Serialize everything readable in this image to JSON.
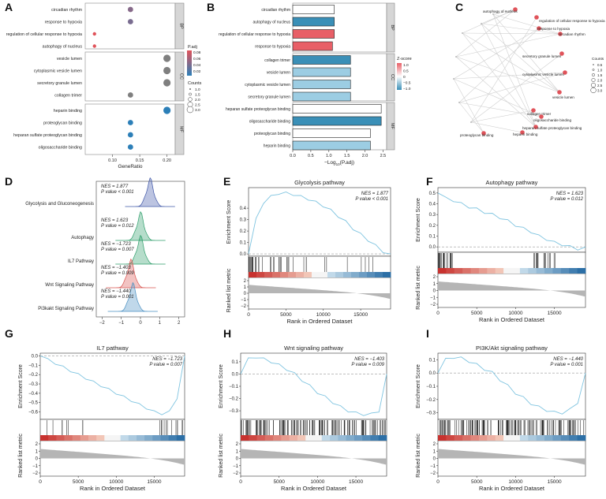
{
  "figure": {
    "panelA": {
      "letter": "A",
      "groups": [
        {
          "name": "BP",
          "terms": [
            {
              "label": "circadian rhythm",
              "gene_ratio": 0.133,
              "padj": 0.045,
              "count": 2
            },
            {
              "label": "response to hypoxia",
              "gene_ratio": 0.133,
              "padj": 0.04,
              "count": 2
            },
            {
              "label": "regulation of cellular response to hypoxia",
              "gene_ratio": 0.067,
              "padj": 0.08,
              "count": 1
            },
            {
              "label": "autophagy of nucleus",
              "gene_ratio": 0.067,
              "padj": 0.08,
              "count": 1
            }
          ]
        },
        {
          "name": "CC",
          "terms": [
            {
              "label": "vesicle lumen",
              "gene_ratio": 0.2,
              "padj": null,
              "count": 3
            },
            {
              "label": "cytoplasmic vesicle lumen",
              "gene_ratio": 0.2,
              "padj": null,
              "count": 3
            },
            {
              "label": "secretory granule lumen",
              "gene_ratio": 0.2,
              "padj": null,
              "count": 3
            },
            {
              "label": "collagen trimer",
              "gene_ratio": 0.133,
              "padj": null,
              "count": 2
            }
          ]
        },
        {
          "name": "MF",
          "terms": [
            {
              "label": "heparin binding",
              "gene_ratio": 0.2,
              "padj": 0.01,
              "count": 3
            },
            {
              "label": "proteoglycan binding",
              "gene_ratio": 0.133,
              "padj": 0.01,
              "count": 2
            },
            {
              "label": "heparan sulfate proteoglycan binding",
              "gene_ratio": 0.133,
              "padj": 0.01,
              "count": 2
            },
            {
              "label": "oligosaccharide binding",
              "gene_ratio": 0.133,
              "padj": 0.01,
              "count": 2
            }
          ]
        }
      ],
      "xticks": [
        "0.10",
        "0.15",
        "0.20"
      ],
      "xlim": [
        0.05,
        0.215
      ],
      "xlabel": "GeneRatio",
      "legend_padj_title": "P.adj",
      "legend_padj_ticks": [
        "0.08",
        "0.06",
        "0.04",
        "0.02"
      ],
      "legend_count_title": "Counts",
      "legend_count_ticks": [
        "1.0",
        "1.5",
        "2.0",
        "2.5",
        "3.0"
      ]
    },
    "panelB": {
      "letter": "B",
      "groups": [
        {
          "name": "BP",
          "terms": [
            {
              "label": "circadian rhythm",
              "value": 1.15,
              "zscore": 0.0
            },
            {
              "label": "autophagy of nucleus",
              "value": 1.15,
              "zscore": -1.0
            },
            {
              "label": "regulation of cellular response to hypoxia",
              "value": 1.15,
              "zscore": 1.0
            },
            {
              "label": "response to hypoxia",
              "value": 1.1,
              "zscore": 1.0
            }
          ]
        },
        {
          "name": "CC",
          "terms": [
            {
              "label": "collagen trimer",
              "value": 1.6,
              "zscore": -1.0
            },
            {
              "label": "vesicle lumen",
              "value": 1.6,
              "zscore": -0.6
            },
            {
              "label": "cytoplasmic vesicle lumen",
              "value": 1.6,
              "zscore": -0.6
            },
            {
              "label": "secretory granule lumen",
              "value": 1.6,
              "zscore": -0.6
            }
          ]
        },
        {
          "name": "MF",
          "terms": [
            {
              "label": "heparan sulfate proteoglycan binding",
              "value": 2.45,
              "zscore": 0.0
            },
            {
              "label": "oligosaccharide binding",
              "value": 2.45,
              "zscore": -1.0
            },
            {
              "label": "proteoglycan binding",
              "value": 2.15,
              "zscore": 0.0
            },
            {
              "label": "heparin binding",
              "value": 2.15,
              "zscore": -0.6
            }
          ]
        }
      ],
      "xticks": [
        "0.0",
        "0.5",
        "1.0",
        "1.5",
        "2.0",
        "2.5"
      ],
      "xlim": [
        0,
        2.6
      ],
      "xlabel": "−Log",
      "xlabel_sub": "10",
      "xlabel_tail": "(P.adj)",
      "legend_title": "Z-score",
      "legend_ticks": [
        "1.0",
        "0.5",
        "0",
        "−0.5",
        "−1.0"
      ]
    },
    "panelC": {
      "letter": "C",
      "terms": [
        "autophagy of nucleus",
        "regulation of cellular response to hypoxia",
        "response to hypoxia",
        "circadian rhythm",
        "secretory granule lumen",
        "cytoplasmic vesicle lumen",
        "vesicle lumen",
        "collagen trimer",
        "oligosaccharide binding",
        "heparan sulfate proteoglycan binding",
        "heparin binding",
        "proteoglycan binding"
      ],
      "legend_title": "Counts",
      "legend_ticks": [
        "0.5",
        "1.0",
        "1.5",
        "2.0",
        "2.5",
        "3.0"
      ]
    },
    "panelD": {
      "letter": "D",
      "pathways": [
        {
          "label": "Glycolysis and Gluconeogenesis",
          "nes": "NES = 1.877",
          "pval": "P value < 0.001",
          "center": 0.5,
          "color": "#3f57a8"
        },
        {
          "label": "Autophagy",
          "nes": "NES = 1.623",
          "pval": "P value = 0.012",
          "center": 0.0,
          "color": "#2e9e6b"
        },
        {
          "label": "IL7 Pathway",
          "nes": "NES = −1.723",
          "pval": "P value = 0.007",
          "center": 0.0,
          "color": "#2e9e6b"
        },
        {
          "label": "Wnt Signaling Pathway",
          "nes": "NES = −1.403",
          "pval": "P value = 0.009",
          "center": -0.5,
          "color": "#d9534f"
        },
        {
          "label": "Pi3kakt Signaling Pathway",
          "nes": "NES = −1.440",
          "pval": "P value = 0.001",
          "center": -0.4,
          "color": "#4a90c2"
        }
      ],
      "xticks": [
        "−2",
        "−1",
        "0",
        "1",
        "2"
      ],
      "xlim": [
        -2.3,
        2.3
      ]
    },
    "axis_texts": {
      "enrichment": "Enrichment Score",
      "ranked": "Ranked list metric",
      "rank_label": "Rank in Ordered Dataset",
      "rank_ticks": [
        "0",
        "5000",
        "10000",
        "15000"
      ]
    }
  },
  "chart_data": [
    {
      "type": "line",
      "panel": "E",
      "title": "Glycolysis pathway",
      "nes": "NES = 1.877",
      "pval": "P value < 0.001",
      "x": [
        0,
        1000,
        2000,
        3000,
        4000,
        5000,
        6000,
        7000,
        8000,
        9000,
        10000,
        11000,
        12000,
        13000,
        14000,
        15000,
        16000,
        17000,
        18000,
        19000
      ],
      "y": [
        0,
        0.3,
        0.45,
        0.5,
        0.53,
        0.53,
        0.52,
        0.5,
        0.48,
        0.45,
        0.42,
        0.38,
        0.33,
        0.28,
        0.22,
        0.17,
        0.12,
        0.07,
        0.02,
        0.0
      ],
      "yticks": [
        "0.0",
        "0.1",
        "0.2",
        "0.3",
        "0.4"
      ],
      "ylim": [
        -0.02,
        0.58
      ],
      "xlim": [
        0,
        19000
      ],
      "metric_ticks": [
        "2",
        "1",
        "0",
        "−1",
        "−2"
      ]
    },
    {
      "type": "line",
      "panel": "F",
      "title": "Autophagy pathway",
      "nes": "NES = 1.623",
      "pval": "P value = 0.012",
      "x": [
        0,
        1000,
        2000,
        3000,
        4000,
        5000,
        6000,
        7000,
        8000,
        9000,
        10000,
        11000,
        12000,
        13000,
        14000,
        15000,
        16000,
        17000,
        18000,
        19000
      ],
      "y": [
        0.5,
        0.45,
        0.43,
        0.4,
        0.37,
        0.35,
        0.32,
        0.3,
        0.27,
        0.24,
        0.2,
        0.17,
        0.14,
        0.1,
        0.07,
        0.04,
        0.02,
        0.0,
        -0.02,
        0.0
      ],
      "yticks": [
        "0.0",
        "0.1",
        "0.2",
        "0.3",
        "0.4",
        "0.5"
      ],
      "ylim": [
        -0.05,
        0.55
      ],
      "xlim": [
        0,
        19000
      ],
      "metric_ticks": [
        "2",
        "1",
        "0",
        "−1",
        "−2"
      ]
    },
    {
      "type": "line",
      "panel": "G",
      "title": "IL7 pathway",
      "nes": "NES = −1.723",
      "pval": "P value = 0.007",
      "x": [
        0,
        1000,
        2000,
        3000,
        4000,
        5000,
        6000,
        7000,
        8000,
        9000,
        10000,
        11000,
        12000,
        13000,
        14000,
        15000,
        16000,
        17000,
        18000,
        19000
      ],
      "y": [
        0,
        -0.04,
        -0.08,
        -0.12,
        -0.16,
        -0.2,
        -0.24,
        -0.28,
        -0.32,
        -0.36,
        -0.4,
        -0.44,
        -0.48,
        -0.52,
        -0.56,
        -0.6,
        -0.62,
        -0.6,
        -0.45,
        0.0
      ],
      "yticks": [
        "0.0",
        "−0.1",
        "−0.2",
        "−0.3",
        "−0.4",
        "−0.5",
        "−0.6"
      ],
      "ylim": [
        -0.68,
        0.03
      ],
      "xlim": [
        0,
        19000
      ],
      "metric_ticks": [
        "2",
        "1",
        "0",
        "−1",
        "−2"
      ]
    },
    {
      "type": "line",
      "panel": "H",
      "title": "Wnt signaling pathway",
      "nes": "NES = −1.403",
      "pval": "P value = 0.009",
      "x": [
        0,
        1000,
        2000,
        3000,
        4000,
        5000,
        6000,
        7000,
        8000,
        9000,
        10000,
        11000,
        12000,
        13000,
        14000,
        15000,
        16000,
        17000,
        18000,
        19000
      ],
      "y": [
        0,
        0.12,
        0.14,
        0.12,
        0.1,
        0.07,
        0.04,
        0.0,
        -0.05,
        -0.1,
        -0.15,
        -0.19,
        -0.23,
        -0.27,
        -0.3,
        -0.32,
        -0.33,
        -0.33,
        -0.3,
        0.0
      ],
      "yticks": [
        "0.1",
        "0.0",
        "−0.1",
        "−0.2",
        "−0.3"
      ],
      "ylim": [
        -0.37,
        0.17
      ],
      "xlim": [
        0,
        19000
      ],
      "metric_ticks": [
        "2",
        "1",
        "0",
        "−1",
        "−2"
      ]
    },
    {
      "type": "line",
      "panel": "I",
      "title": "PI3K/Akt signaling pathway",
      "nes": "NES = −1.440",
      "pval": "P value = 0.001",
      "x": [
        0,
        1000,
        2000,
        3000,
        4000,
        5000,
        6000,
        7000,
        8000,
        9000,
        10000,
        11000,
        12000,
        13000,
        14000,
        15000,
        16000,
        17000,
        18000,
        19000
      ],
      "y": [
        0,
        0.1,
        0.12,
        0.11,
        0.09,
        0.06,
        0.03,
        0.0,
        -0.05,
        -0.1,
        -0.15,
        -0.19,
        -0.23,
        -0.26,
        -0.28,
        -0.3,
        -0.3,
        -0.28,
        -0.22,
        0.0
      ],
      "yticks": [
        "0.1",
        "0.0",
        "−0.1",
        "−0.2",
        "−0.3"
      ],
      "ylim": [
        -0.35,
        0.15
      ],
      "xlim": [
        0,
        19000
      ],
      "metric_ticks": [
        "2",
        "1",
        "0",
        "−1",
        "−2"
      ]
    }
  ],
  "colors": {
    "accent_red": "#e0535a",
    "teal_blue": "#3a8fb7",
    "light_blue": "#89cbe4",
    "grey": "#7f7f7f"
  }
}
